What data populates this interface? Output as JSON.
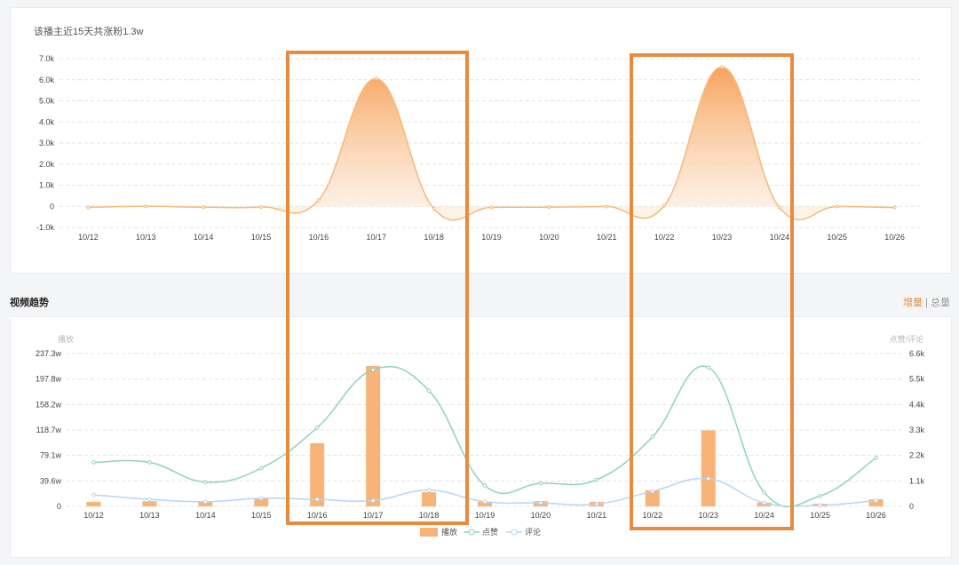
{
  "top_chart_title": "该播主近15天共涨粉1.3w",
  "section_title": "视频趋势",
  "toggle": {
    "active": "增量",
    "separator": "|",
    "inactive": "总量"
  },
  "colors": {
    "fans_line": "#f5b979",
    "fans_fill_top": "#f7a35c",
    "play_bar": "#f8b378",
    "like_line": "#8fd1c3",
    "comment_line": "#b8d5f2",
    "highlight_box": "#ea8a3e",
    "grid": "#e3e3e3"
  },
  "chart_data": [
    {
      "type": "area",
      "title": "该播主近15天共涨粉1.3w",
      "categories": [
        "10/12",
        "10/13",
        "10/14",
        "10/15",
        "10/16",
        "10/17",
        "10/18",
        "10/19",
        "10/20",
        "10/21",
        "10/22",
        "10/23",
        "10/24",
        "10/25",
        "10/26"
      ],
      "y_ticks": [
        "7.0k",
        "6.0k",
        "5.0k",
        "4.0k",
        "3.0k",
        "2.0k",
        "1.0k",
        "0",
        "-1.0k"
      ],
      "ylim": [
        -1000,
        7000
      ],
      "series": [
        {
          "values": [
            -50,
            0,
            -40,
            -30,
            300,
            6050,
            -120,
            -50,
            -40,
            -10,
            30,
            6600,
            -60,
            -10,
            -60
          ]
        }
      ],
      "grid": true
    },
    {
      "type": "bar",
      "categories": [
        "10/12",
        "10/13",
        "10/14",
        "10/15",
        "10/16",
        "10/17",
        "10/18",
        "10/19",
        "10/20",
        "10/21",
        "10/22",
        "10/23",
        "10/24",
        "10/25",
        "10/26"
      ],
      "y_left_label": "播放",
      "y_left_ticks": [
        "237.3w",
        "197.8w",
        "158.2w",
        "118.7w",
        "79.1w",
        "39.6w",
        "0"
      ],
      "y_left_lim": [
        0,
        237.3
      ],
      "y_right_label": "点赞/评论",
      "y_right_ticks": [
        "6.6k",
        "5.5k",
        "4.4k",
        "3.3k",
        "2.2k",
        "1.1k",
        "0"
      ],
      "y_right_lim": [
        0,
        6.6
      ],
      "series": [
        {
          "name": "播放",
          "type": "bar",
          "axis": "left",
          "values": [
            7,
            8,
            7,
            12,
            98,
            218,
            22,
            7,
            8,
            7,
            25,
            118,
            6,
            4,
            11
          ]
        },
        {
          "name": "点赞",
          "type": "line",
          "axis": "right",
          "values": [
            1.9,
            1.9,
            1.05,
            1.65,
            3.4,
            5.9,
            5.0,
            0.9,
            1.0,
            1.15,
            3.0,
            6.0,
            0.6,
            0.45,
            2.1
          ]
        },
        {
          "name": "评论",
          "type": "line",
          "axis": "right",
          "values": [
            0.5,
            0.3,
            0.2,
            0.35,
            0.3,
            0.25,
            0.7,
            0.2,
            0.15,
            0.1,
            0.65,
            1.2,
            0.15,
            0.05,
            0.25
          ]
        }
      ],
      "legend": "bottom-center",
      "grid": true
    }
  ]
}
